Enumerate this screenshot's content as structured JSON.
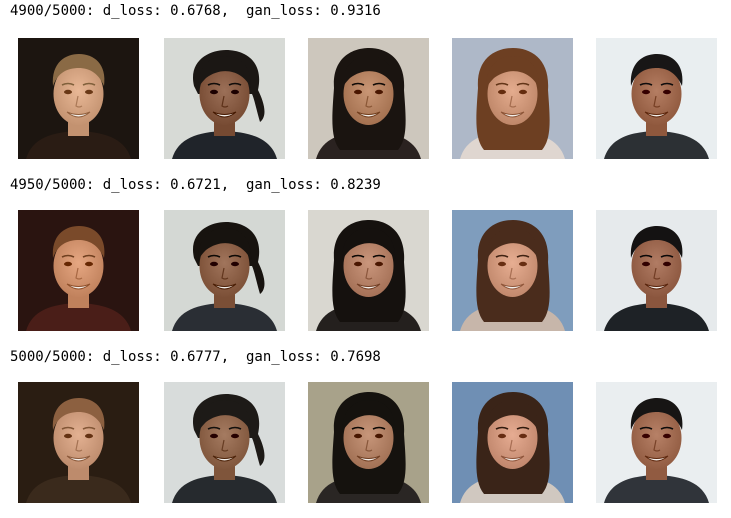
{
  "epochs": [
    {
      "log": "4900/5000: d_loss: 0.6768,  gan_loss: 0.9316",
      "faces": [
        {
          "bg": "#1c1510",
          "hair": "#8a6a45",
          "skin": "#d7a684",
          "shirt": "#2a1c14",
          "hair_style": "short"
        },
        {
          "bg": "#d7dad6",
          "hair": "#1b1714",
          "skin": "#8a5e46",
          "shirt": "#20242a",
          "hair_style": "messy"
        },
        {
          "bg": "#cdc7bd",
          "hair": "#1a1410",
          "skin": "#b78463",
          "shirt": "#2a2220",
          "hair_style": "long"
        },
        {
          "bg": "#aeb8c8",
          "hair": "#6d3f22",
          "skin": "#d29a7c",
          "shirt": "#dfd6d0",
          "hair_style": "long"
        },
        {
          "bg": "#e9eef0",
          "hair": "#181616",
          "skin": "#a36c51",
          "shirt": "#2c3034",
          "hair_style": "short"
        }
      ]
    },
    {
      "log": "4950/5000: d_loss: 0.6721,  gan_loss: 0.8239",
      "faces": [
        {
          "bg": "#2a1410",
          "hair": "#7a4a2a",
          "skin": "#d49570",
          "shirt": "#4a1e18",
          "hair_style": "short"
        },
        {
          "bg": "#d4d8d4",
          "hair": "#17130f",
          "skin": "#8f634a",
          "shirt": "#2a2e34",
          "hair_style": "messy"
        },
        {
          "bg": "#d9d7d0",
          "hair": "#15110e",
          "skin": "#b8846a",
          "shirt": "#24201e",
          "hair_style": "long"
        },
        {
          "bg": "#7f9dbd",
          "hair": "#4a2c1c",
          "skin": "#d59c80",
          "shirt": "#c7b6aa",
          "hair_style": "long"
        },
        {
          "bg": "#e6eaec",
          "hair": "#141212",
          "skin": "#9f6a52",
          "shirt": "#1e2226",
          "hair_style": "short"
        }
      ]
    },
    {
      "log": "5000/5000: d_loss: 0.6777,  gan_loss: 0.7698",
      "faces": [
        {
          "bg": "#2a1d12",
          "hair": "#8c6040",
          "skin": "#d19f80",
          "shirt": "#3a2a1c",
          "hair_style": "short"
        },
        {
          "bg": "#d8dcdb",
          "hair": "#1d1a17",
          "skin": "#93694f",
          "shirt": "#262a2e",
          "hair_style": "messy"
        },
        {
          "bg": "#a8a28a",
          "hair": "#15120e",
          "skin": "#b58468",
          "shirt": "#2a2624",
          "hair_style": "long"
        },
        {
          "bg": "#6f8fb4",
          "hair": "#3a2418",
          "skin": "#d49a80",
          "shirt": "#d0c8c0",
          "hair_style": "long"
        },
        {
          "bg": "#eaeef0",
          "hair": "#171514",
          "skin": "#a56f55",
          "shirt": "#30343a",
          "hair_style": "short"
        }
      ]
    }
  ]
}
